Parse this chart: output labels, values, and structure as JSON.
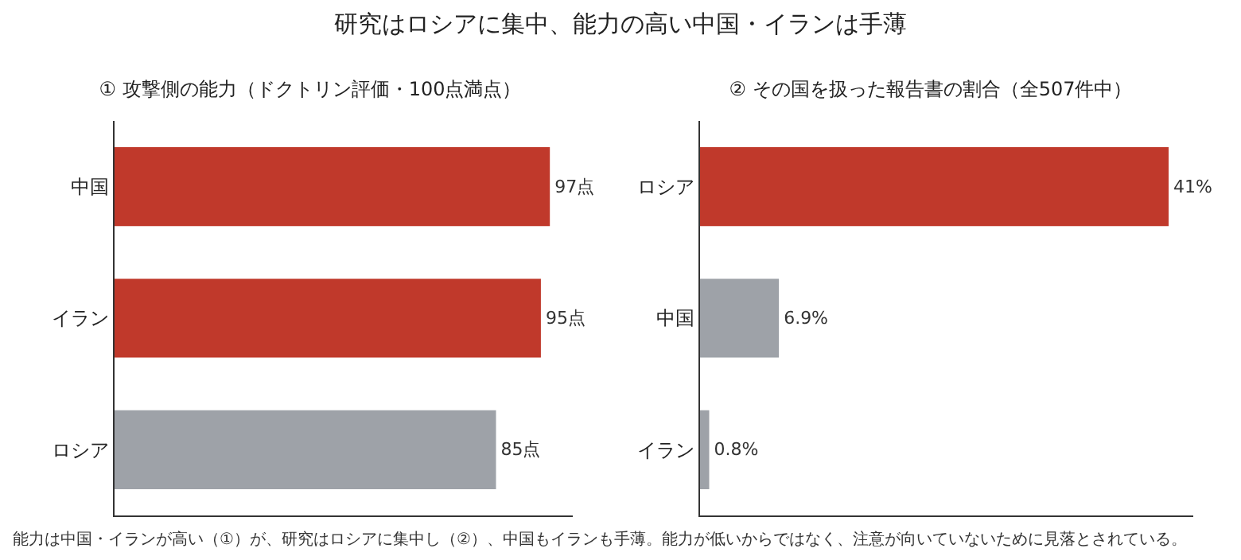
{
  "chart_data": [
    {
      "type": "bar",
      "orientation": "horizontal",
      "title": "研究はロシアに集中、能力の高い中国・イランは手薄",
      "subtitle": "① 攻撃側の能力（ドクトリン評価・100点満点）",
      "categories": [
        "中国",
        "イラン",
        "ロシア"
      ],
      "values": [
        97,
        95,
        85
      ],
      "value_labels": [
        "97点",
        "95点",
        "85点"
      ],
      "colors": [
        "#c0392b",
        "#c0392b",
        "#9ea2a8"
      ],
      "tick_labels": "y"
    },
    {
      "type": "bar",
      "orientation": "horizontal",
      "subtitle": "② その国を扱った報告書の割合（全507件中）",
      "categories": [
        "ロシア",
        "中国",
        "イラン"
      ],
      "values": [
        41,
        6.9,
        0.8
      ],
      "value_labels": [
        "41%",
        "6.9%",
        "0.8%"
      ],
      "colors": [
        "#c0392b",
        "#9ea2a8",
        "#9ea2a8"
      ],
      "tick_labels": "y",
      "annotations": [
        "能力は中国・イランが高い（①）が、研究はロシアに集中し（②）、中国もイランも手薄。能力が低いからではなく、注意が向いていないために見落とされている。"
      ]
    }
  ]
}
